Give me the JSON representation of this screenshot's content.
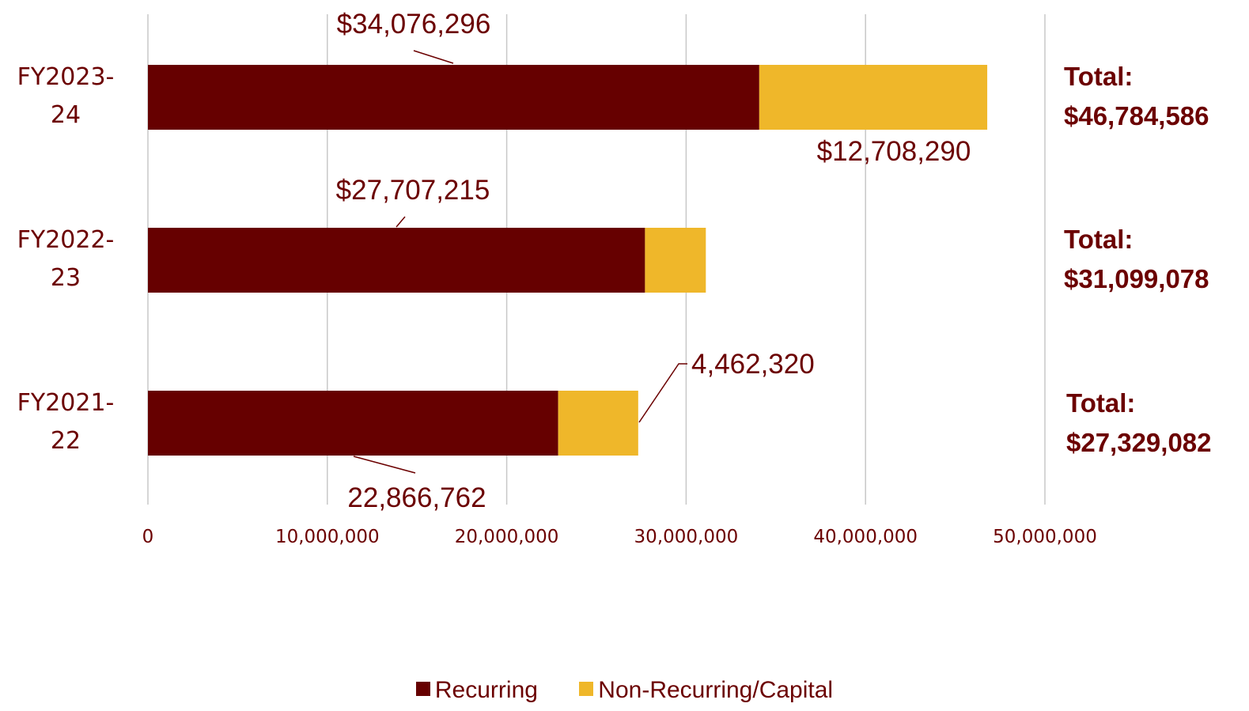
{
  "chart_data": {
    "type": "bar",
    "orientation": "horizontal",
    "stacked": true,
    "categories": [
      "FY2023-24",
      "FY2022-23",
      "FY2021-22"
    ],
    "category_lines": [
      [
        "FY2023-",
        "24"
      ],
      [
        "FY2022-",
        "23"
      ],
      [
        "FY2021-",
        "22"
      ]
    ],
    "series": [
      {
        "name": "Recurring",
        "color": "#660000",
        "values": [
          34076296,
          27707215,
          22866762
        ]
      },
      {
        "name": "Non-Recurring/Capital",
        "color": "#efb72a",
        "values": [
          12708290,
          3391863,
          4462320
        ]
      }
    ],
    "data_labels": [
      {
        "category": "FY2023-24",
        "series": "Recurring",
        "text": "$34,076,296"
      },
      {
        "category": "FY2023-24",
        "series": "Non-Recurring/Capital",
        "text": "$12,708,290"
      },
      {
        "category": "FY2022-23",
        "series": "Recurring",
        "text": "$27,707,215"
      },
      {
        "category": "FY2021-22",
        "series": "Non-Recurring/Capital",
        "text": "4,462,320"
      },
      {
        "category": "FY2021-22",
        "series": "Recurring",
        "text": "22,866,762"
      }
    ],
    "totals": [
      {
        "category": "FY2023-24",
        "label": "Total:",
        "value": "$46,784,586"
      },
      {
        "category": "FY2022-23",
        "label": "Total:",
        "value": "$31,099,078"
      },
      {
        "category": "FY2021-22",
        "label": "Total:",
        "value": "$27,329,082"
      }
    ],
    "xlim": [
      0,
      50000000
    ],
    "x_ticks": [
      0,
      10000000,
      20000000,
      30000000,
      40000000,
      50000000
    ],
    "x_tick_labels": [
      "0",
      "10,000,000",
      "20,000,000",
      "30,000,000",
      "40,000,000",
      "50,000,000"
    ],
    "grid": true,
    "legend_position": "bottom"
  },
  "legend": {
    "items": [
      {
        "label": "Recurring",
        "color": "#660000"
      },
      {
        "label": "Non-Recurring/Capital",
        "color": "#efb72a"
      }
    ]
  }
}
